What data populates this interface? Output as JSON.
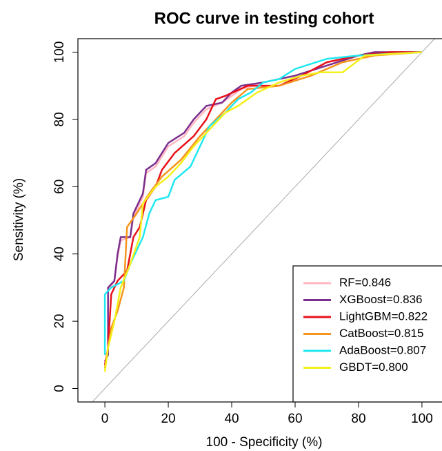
{
  "chart_data": {
    "type": "line",
    "title": "ROC curve in testing cohort",
    "x_label": "100 - Specificity (%)",
    "y_label": "Sensitivity (%)",
    "xlim": [
      -8.5,
      108.5
    ],
    "ylim": [
      -4,
      104
    ],
    "xticks": [
      0,
      20,
      40,
      60,
      80,
      100
    ],
    "yticks": [
      0,
      20,
      40,
      60,
      80,
      100
    ],
    "legend": "bottom-right",
    "series": [
      {
        "name": "RF=0.846",
        "color": "#ffb6c1",
        "x": [
          0,
          1,
          1,
          3,
          4,
          5,
          8,
          9,
          12,
          13,
          16,
          18,
          20,
          25,
          28,
          30,
          32,
          37,
          40,
          43,
          50,
          60,
          70,
          80,
          85,
          100
        ],
        "values": [
          8,
          10,
          29,
          32,
          39,
          44,
          45,
          51,
          57,
          64,
          66,
          69,
          72,
          75,
          79,
          81,
          83,
          85,
          87,
          89,
          91,
          93,
          96,
          99,
          100,
          100
        ]
      },
      {
        "name": "XGBoost=0.836",
        "color": "#7b2f8e",
        "x": [
          0,
          1,
          1,
          3,
          4,
          5,
          8,
          9,
          12,
          13,
          16,
          18,
          20,
          25,
          28,
          30,
          32,
          37,
          40,
          43,
          50,
          60,
          70,
          80,
          85,
          100
        ],
        "values": [
          8,
          10,
          30,
          32,
          40,
          45,
          45,
          52,
          58,
          65,
          67,
          70,
          73,
          76,
          80,
          82,
          84,
          85,
          88,
          90,
          91,
          93,
          96,
          99,
          100,
          100
        ]
      },
      {
        "name": "LightGBM=0.822",
        "color": "#e8101a",
        "x": [
          0,
          1,
          2,
          4,
          7,
          9,
          11,
          13,
          16,
          18,
          22,
          28,
          32,
          35,
          38,
          45,
          55,
          62,
          70,
          80,
          90,
          100
        ],
        "values": [
          7,
          12,
          28,
          32,
          35,
          45,
          48,
          56,
          60,
          65,
          70,
          75,
          80,
          86,
          87,
          90,
          90,
          93,
          97,
          99,
          100,
          100
        ]
      },
      {
        "name": "CatBoost=0.815",
        "color": "#f7941d",
        "x": [
          0,
          2,
          4,
          6,
          7,
          10,
          14,
          18,
          24,
          30,
          35,
          40,
          45,
          55,
          65,
          75,
          85,
          100
        ],
        "values": [
          6,
          18,
          23,
          30,
          48,
          52,
          58,
          63,
          68,
          75,
          80,
          85,
          89,
          90,
          93,
          97,
          99,
          100
        ]
      },
      {
        "name": "AdaBoost=0.807",
        "color": "#1ee8f0",
        "x": [
          0,
          0,
          2,
          6,
          8,
          12,
          14,
          16,
          20,
          22,
          27,
          30,
          33,
          38,
          42,
          46,
          50,
          55,
          60,
          70,
          80,
          100
        ],
        "values": [
          10,
          28,
          30,
          32,
          37,
          45,
          52,
          56,
          57,
          62,
          66,
          72,
          78,
          82,
          86,
          88,
          91,
          92,
          95,
          98,
          99,
          100
        ]
      },
      {
        "name": "GBDT=0.800",
        "color": "#f5f01a",
        "x": [
          0,
          1,
          3,
          5,
          8,
          11,
          12,
          16,
          20,
          24,
          28,
          33,
          38,
          42,
          48,
          55,
          62,
          68,
          75,
          82,
          100
        ],
        "values": [
          5,
          12,
          20,
          30,
          37,
          45,
          55,
          60,
          63,
          67,
          72,
          77,
          82,
          84,
          88,
          91,
          93,
          94,
          94,
          99,
          100
        ]
      }
    ]
  }
}
